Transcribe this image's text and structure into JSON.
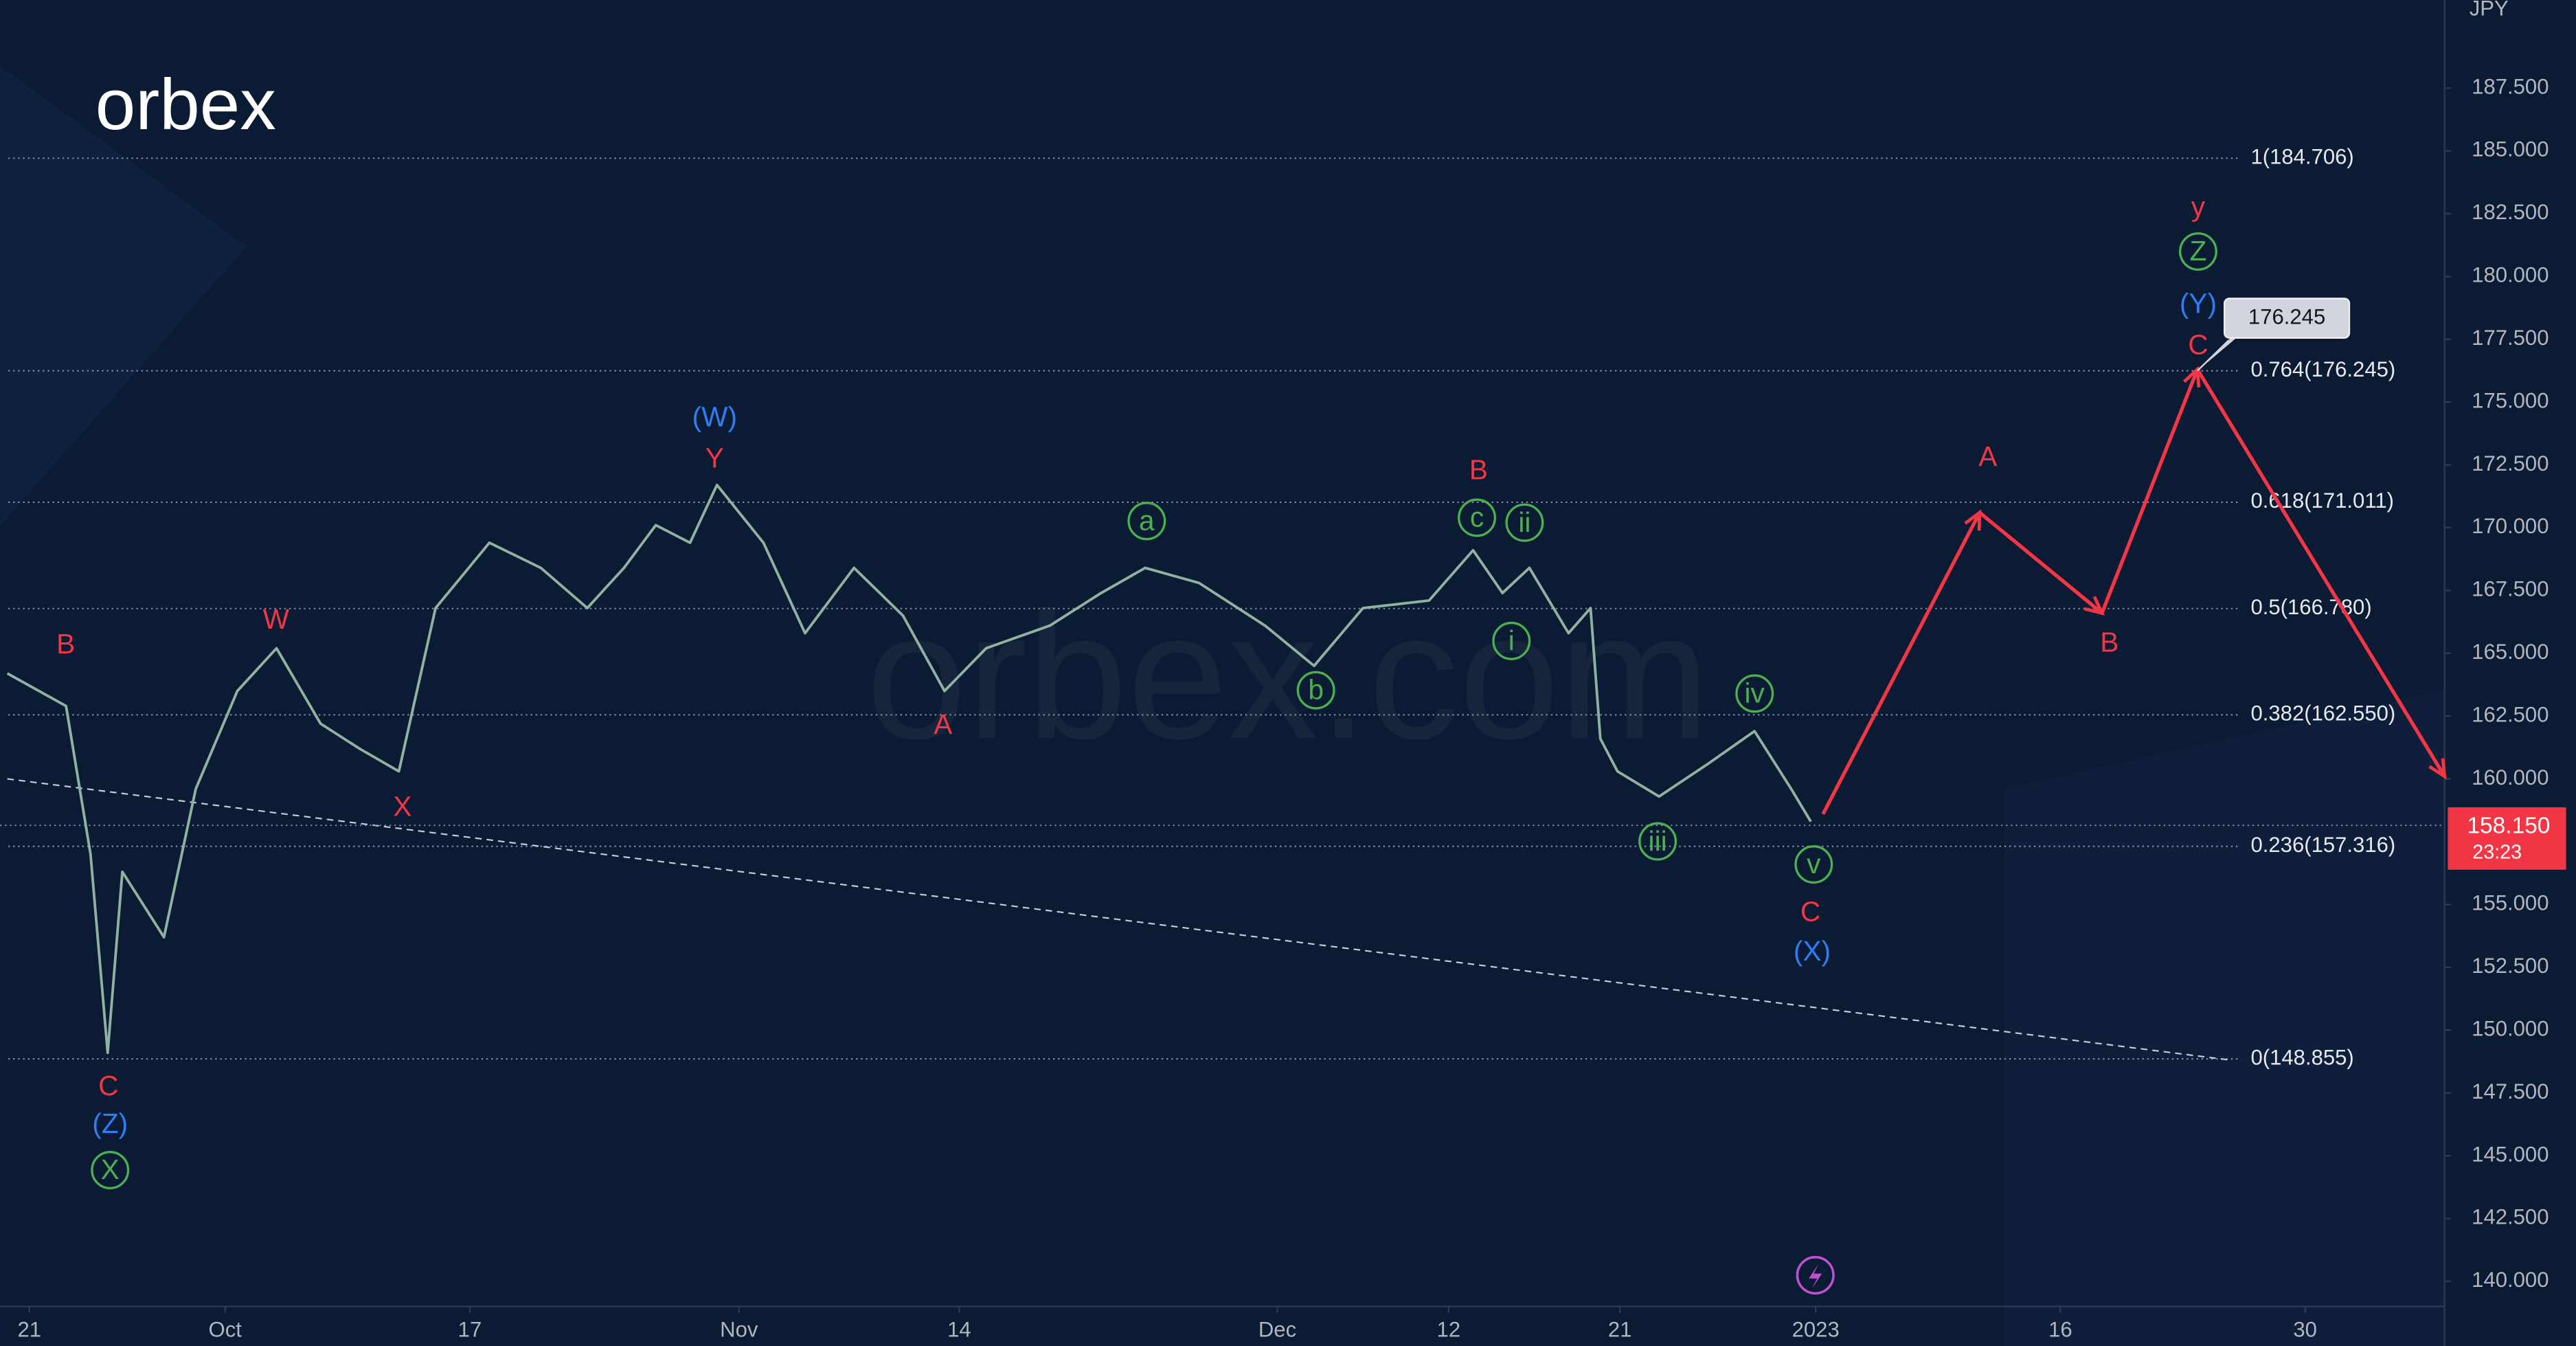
{
  "chart_data": {
    "type": "line",
    "currency": "JPY",
    "logo": "orbex",
    "watermark": "orbex.com",
    "xlim": [
      -1.2,
      98.7
    ],
    "ylim": [
      139,
      191
    ],
    "xticks": [
      {
        "value": 0,
        "label": "21"
      },
      {
        "value": 8,
        "label": "Oct"
      },
      {
        "value": 18,
        "label": "17"
      },
      {
        "value": 29,
        "label": "Nov"
      },
      {
        "value": 38,
        "label": "14"
      },
      {
        "value": 51,
        "label": "Dec"
      },
      {
        "value": 58,
        "label": "12"
      },
      {
        "value": 65,
        "label": "21"
      },
      {
        "value": 73,
        "label": "2023"
      },
      {
        "value": 83,
        "label": "16"
      },
      {
        "value": 93,
        "label": "30"
      }
    ],
    "yticks": [
      {
        "value": 187.5,
        "label": "187.500"
      },
      {
        "value": 185,
        "label": "185.000"
      },
      {
        "value": 182.5,
        "label": "182.500"
      },
      {
        "value": 180,
        "label": "180.000"
      },
      {
        "value": 177.5,
        "label": "177.500"
      },
      {
        "value": 175,
        "label": "175.000"
      },
      {
        "value": 172.5,
        "label": "172.500"
      },
      {
        "value": 170,
        "label": "170.000"
      },
      {
        "value": 167.5,
        "label": "167.500"
      },
      {
        "value": 165,
        "label": "165.000"
      },
      {
        "value": 162.5,
        "label": "162.500"
      },
      {
        "value": 160,
        "label": "160.000"
      },
      {
        "value": 155,
        "label": "155.000"
      },
      {
        "value": 152.5,
        "label": "152.500"
      },
      {
        "value": 150,
        "label": "150.000"
      },
      {
        "value": 147.5,
        "label": "147.500"
      },
      {
        "value": 145,
        "label": "145.000"
      },
      {
        "value": 142.5,
        "label": "142.500"
      },
      {
        "value": 140,
        "label": "140.000"
      }
    ],
    "series": [
      {
        "color": "#8fb3a0",
        "x": [
          -0.9,
          1.5,
          2.5,
          3.2,
          3.8,
          5.5,
          6.8,
          8.5,
          10.1,
          11.9,
          13.5,
          15.1,
          16.6,
          18.8,
          20.9,
          22.8,
          24.3,
          25.6,
          27,
          28.1,
          30,
          31.7,
          33.7,
          35.7,
          37.4,
          39.1,
          41.7,
          43.8,
          45.6,
          47.8,
          50.5,
          52.5,
          54.5,
          57.2,
          59,
          60.2,
          61.3,
          62.9,
          63.8,
          64.2,
          64.9,
          66.6,
          68.6,
          70.5,
          72,
          72.8
        ],
        "values": [
          164.2,
          162.9,
          157,
          149.1,
          156.3,
          153.7,
          159.6,
          163.5,
          165.2,
          162.2,
          161.2,
          160.3,
          166.8,
          169.4,
          168.4,
          166.8,
          168.4,
          170.1,
          169.4,
          171.7,
          169.4,
          165.8,
          168.4,
          166.5,
          163.5,
          165.2,
          166.1,
          167.4,
          168.4,
          167.8,
          166.1,
          164.5,
          166.8,
          167.1,
          169.1,
          167.4,
          168.4,
          165.8,
          166.8,
          161.6,
          160.3,
          159.3,
          160.6,
          161.9,
          159.6,
          158.3
        ]
      },
      {
        "color": "#f23645",
        "x": [
          73.3,
          79.7,
          84.7,
          88.6,
          98.7
        ],
        "values": [
          158.6,
          170.6,
          166.6,
          176.3,
          160.1
        ]
      }
    ],
    "trendline": {
      "x": [
        -0.9,
        90
      ],
      "values": [
        160.0,
        148.8
      ]
    },
    "fib_levels": [
      {
        "label": "1(184.706)",
        "value": 184.706
      },
      {
        "label": "0.764(176.245)",
        "value": 176.245
      },
      {
        "label": "0.618(171.011)",
        "value": 171.011
      },
      {
        "label": "0.5(166.780)",
        "value": 166.78
      },
      {
        "label": "0.382(162.550)",
        "value": 162.55
      },
      {
        "label": "0.236(157.316)",
        "value": 157.316
      },
      {
        "label": "0(148.855)",
        "value": 148.855
      }
    ],
    "last_price": {
      "value": 158.15,
      "label": "158.150",
      "countdown": "23:23",
      "color": "#f23645"
    },
    "callout": {
      "value": 176.245,
      "label": "176.245"
    },
    "annotations": [
      {
        "text": "B",
        "color": "#f23645"
      },
      {
        "text": "W",
        "color": "#f23645"
      },
      {
        "text": "C",
        "color": "#f23645"
      },
      {
        "text": "(Z)",
        "color": "#2f7cf6"
      },
      {
        "text": "X",
        "color": "#4caf50",
        "circled": true
      },
      {
        "text": "X",
        "color": "#f23645"
      },
      {
        "text": "(W)",
        "color": "#2f7cf6"
      },
      {
        "text": "Y",
        "color": "#f23645"
      },
      {
        "text": "A",
        "color": "#f23645"
      },
      {
        "text": "a",
        "color": "#4caf50",
        "circled": true
      },
      {
        "text": "b",
        "color": "#4caf50",
        "circled": true
      },
      {
        "text": "B",
        "color": "#f23645"
      },
      {
        "text": "c",
        "color": "#4caf50",
        "circled": true
      },
      {
        "text": "ii",
        "color": "#4caf50",
        "circled": true
      },
      {
        "text": "i",
        "color": "#4caf50",
        "circled": true
      },
      {
        "text": "iii",
        "color": "#4caf50",
        "circled": true
      },
      {
        "text": "iv",
        "color": "#4caf50",
        "circled": true
      },
      {
        "text": "v",
        "color": "#4caf50",
        "circled": true
      },
      {
        "text": "C",
        "color": "#f23645"
      },
      {
        "text": "(X)",
        "color": "#2f7cf6"
      },
      {
        "text": "A",
        "color": "#f23645"
      },
      {
        "text": "B",
        "color": "#f23645"
      },
      {
        "text": "y",
        "color": "#f23645"
      },
      {
        "text": "Z",
        "color": "#4caf50",
        "circled": true
      },
      {
        "text": "(Y)",
        "color": "#2f7cf6"
      },
      {
        "text": "C",
        "color": "#f23645"
      }
    ]
  }
}
